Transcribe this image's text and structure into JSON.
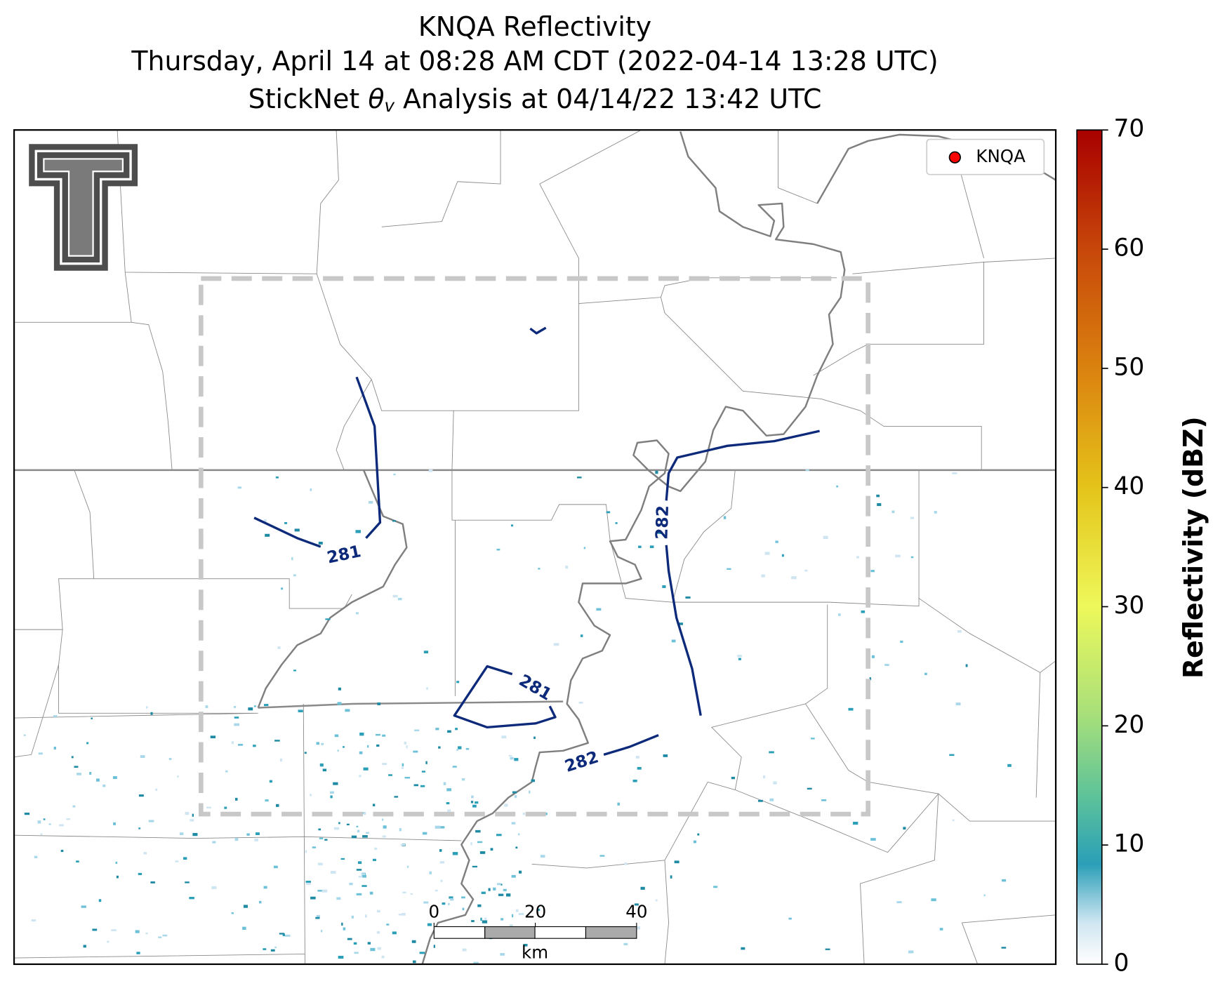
{
  "title": {
    "line1": "KNQA Reflectivity",
    "line2": "Thursday, April 14 at 08:28 AM CDT (2022-04-14 13:28 UTC)",
    "line3": {
      "before": "StickNet ",
      "symbol": "θ",
      "subscript": "v",
      "after": " Analysis at 04/14/22 13:42 UTC"
    }
  },
  "legend": {
    "label": "KNQA",
    "color": "#ff0000"
  },
  "contours": [
    {
      "level": 281
    },
    {
      "level": 281
    },
    {
      "level": 282
    },
    {
      "level": 282
    }
  ],
  "scale_bar": {
    "ticks": [
      0,
      20,
      40
    ],
    "lim": [
      0,
      40
    ],
    "unit": "km"
  },
  "colorbar": {
    "label": "Reflectivity (dBZ)",
    "lim": [
      0,
      70
    ],
    "ticks": [
      0,
      10,
      20,
      30,
      40,
      50,
      60,
      70
    ]
  }
}
